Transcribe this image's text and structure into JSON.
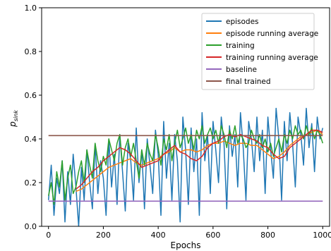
{
  "chart_data": {
    "type": "line",
    "title": "",
    "xlabel": "Epochs",
    "ylabel_main": "p",
    "ylabel_sub": "sink",
    "xlim": [
      -25,
      1025
    ],
    "ylim": [
      0,
      1
    ],
    "xticks": [
      0,
      200,
      400,
      600,
      800,
      1000
    ],
    "yticks": [
      0.0,
      0.2,
      0.4,
      0.6,
      0.8,
      1.0
    ],
    "xtick_labels": [
      "0",
      "200",
      "400",
      "600",
      "800",
      "1000"
    ],
    "ytick_labels": [
      "0.0",
      "0.2",
      "0.4",
      "0.6",
      "0.8",
      "1.0"
    ],
    "grid": false,
    "legend_position": "top-right",
    "series": [
      {
        "name": "episodes",
        "color": "#1f77b4",
        "x": [
          0,
          10,
          20,
          30,
          40,
          50,
          60,
          70,
          80,
          90,
          100,
          110,
          120,
          130,
          140,
          150,
          160,
          170,
          180,
          190,
          200,
          210,
          220,
          230,
          240,
          250,
          260,
          270,
          280,
          290,
          300,
          310,
          320,
          330,
          340,
          350,
          360,
          370,
          380,
          390,
          400,
          410,
          420,
          430,
          440,
          450,
          460,
          470,
          480,
          490,
          500,
          510,
          520,
          530,
          540,
          550,
          560,
          570,
          580,
          590,
          600,
          610,
          620,
          630,
          640,
          650,
          660,
          670,
          680,
          690,
          700,
          710,
          720,
          730,
          740,
          750,
          760,
          770,
          780,
          790,
          800,
          810,
          820,
          830,
          840,
          850,
          860,
          870,
          880,
          890,
          900,
          910,
          920,
          930,
          940,
          950,
          960,
          970,
          980,
          990,
          1000
        ],
        "values": [
          0.12,
          0.28,
          0.05,
          0.22,
          0.15,
          0.3,
          0.02,
          0.25,
          0.1,
          0.33,
          0.18,
          0.0,
          0.27,
          0.12,
          0.35,
          0.2,
          0.08,
          0.38,
          0.15,
          0.3,
          0.22,
          0.05,
          0.4,
          0.18,
          0.33,
          0.1,
          0.42,
          0.25,
          0.07,
          0.38,
          0.3,
          0.12,
          0.45,
          0.2,
          0.35,
          0.08,
          0.4,
          0.28,
          0.15,
          0.44,
          0.33,
          0.05,
          0.48,
          0.22,
          0.38,
          0.12,
          0.42,
          0.3,
          0.02,
          0.5,
          0.35,
          0.1,
          0.45,
          0.25,
          0.4,
          0.05,
          0.52,
          0.3,
          0.42,
          0.15,
          0.48,
          0.35,
          0.2,
          0.5,
          0.38,
          0.08,
          0.46,
          0.32,
          0.42,
          0.18,
          0.52,
          0.36,
          0.12,
          0.48,
          0.4,
          0.25,
          0.5,
          0.3,
          0.44,
          0.15,
          0.5,
          0.35,
          0.22,
          0.54,
          0.4,
          0.12,
          0.48,
          0.3,
          0.52,
          0.38,
          0.18,
          0.5,
          0.42,
          0.28,
          0.54,
          0.36,
          0.47,
          0.25,
          0.5,
          0.4,
          0.45
        ]
      },
      {
        "name": "episode running average",
        "color": "#ff7f0e",
        "x": [
          100,
          120,
          140,
          160,
          180,
          200,
          220,
          240,
          260,
          280,
          300,
          320,
          340,
          360,
          380,
          400,
          420,
          440,
          460,
          480,
          500,
          520,
          540,
          560,
          580,
          600,
          620,
          640,
          660,
          680,
          700,
          720,
          740,
          760,
          780,
          800,
          820,
          840,
          860,
          880,
          900,
          920,
          940,
          960,
          980,
          1000
        ],
        "values": [
          0.16,
          0.17,
          0.19,
          0.21,
          0.23,
          0.25,
          0.27,
          0.28,
          0.29,
          0.3,
          0.31,
          0.29,
          0.28,
          0.29,
          0.3,
          0.31,
          0.33,
          0.34,
          0.36,
          0.34,
          0.35,
          0.35,
          0.34,
          0.35,
          0.37,
          0.38,
          0.38,
          0.39,
          0.38,
          0.37,
          0.38,
          0.38,
          0.37,
          0.37,
          0.35,
          0.33,
          0.31,
          0.32,
          0.34,
          0.37,
          0.39,
          0.41,
          0.42,
          0.43,
          0.44,
          0.42
        ]
      },
      {
        "name": "training",
        "color": "#2ca02c",
        "x": [
          0,
          10,
          20,
          30,
          40,
          50,
          60,
          70,
          80,
          90,
          100,
          110,
          120,
          130,
          140,
          150,
          160,
          170,
          180,
          190,
          200,
          210,
          220,
          230,
          240,
          250,
          260,
          270,
          280,
          290,
          300,
          310,
          320,
          330,
          340,
          350,
          360,
          370,
          380,
          390,
          400,
          410,
          420,
          430,
          440,
          450,
          460,
          470,
          480,
          490,
          500,
          510,
          520,
          530,
          540,
          550,
          560,
          570,
          580,
          590,
          600,
          610,
          620,
          630,
          640,
          650,
          660,
          670,
          680,
          690,
          700,
          710,
          720,
          730,
          740,
          750,
          760,
          770,
          780,
          790,
          800,
          810,
          820,
          830,
          840,
          850,
          860,
          870,
          880,
          890,
          900,
          910,
          920,
          930,
          940,
          950,
          960,
          970,
          980,
          990,
          1000
        ],
        "values": [
          0.14,
          0.2,
          0.1,
          0.25,
          0.18,
          0.3,
          0.12,
          0.22,
          0.28,
          0.15,
          0.18,
          0.25,
          0.3,
          0.2,
          0.35,
          0.28,
          0.22,
          0.38,
          0.3,
          0.25,
          0.32,
          0.28,
          0.4,
          0.35,
          0.3,
          0.38,
          0.42,
          0.28,
          0.36,
          0.4,
          0.32,
          0.38,
          0.3,
          0.22,
          0.35,
          0.28,
          0.38,
          0.33,
          0.3,
          0.42,
          0.36,
          0.28,
          0.4,
          0.35,
          0.42,
          0.3,
          0.38,
          0.44,
          0.36,
          0.4,
          0.45,
          0.38,
          0.42,
          0.35,
          0.44,
          0.4,
          0.46,
          0.38,
          0.42,
          0.45,
          0.4,
          0.44,
          0.38,
          0.46,
          0.42,
          0.36,
          0.44,
          0.4,
          0.46,
          0.38,
          0.42,
          0.4,
          0.36,
          0.38,
          0.44,
          0.4,
          0.38,
          0.42,
          0.36,
          0.4,
          0.34,
          0.38,
          0.32,
          0.36,
          0.4,
          0.34,
          0.42,
          0.38,
          0.44,
          0.4,
          0.46,
          0.42,
          0.44,
          0.4,
          0.46,
          0.42,
          0.45,
          0.4,
          0.44,
          0.42,
          0.38
        ]
      },
      {
        "name": "training running average",
        "color": "#d62728",
        "x": [
          100,
          120,
          140,
          160,
          180,
          200,
          220,
          240,
          260,
          280,
          300,
          320,
          340,
          360,
          380,
          400,
          420,
          440,
          460,
          480,
          500,
          520,
          540,
          560,
          580,
          600,
          620,
          640,
          660,
          680,
          700,
          720,
          740,
          760,
          780,
          800,
          820,
          840,
          860,
          880,
          900,
          920,
          940,
          960,
          980,
          1000
        ],
        "values": [
          0.17,
          0.19,
          0.22,
          0.25,
          0.27,
          0.3,
          0.32,
          0.34,
          0.36,
          0.35,
          0.33,
          0.3,
          0.27,
          0.28,
          0.29,
          0.3,
          0.33,
          0.35,
          0.37,
          0.34,
          0.33,
          0.31,
          0.3,
          0.32,
          0.36,
          0.38,
          0.39,
          0.41,
          0.42,
          0.41,
          0.42,
          0.41,
          0.4,
          0.39,
          0.37,
          0.36,
          0.33,
          0.31,
          0.32,
          0.36,
          0.38,
          0.4,
          0.42,
          0.44,
          0.44,
          0.43
        ]
      },
      {
        "name": "baseline",
        "color": "#9467bd",
        "x": [
          0,
          1000
        ],
        "values": [
          0.115,
          0.115
        ]
      },
      {
        "name": "final trained",
        "color": "#8c564b",
        "x": [
          0,
          1000
        ],
        "values": [
          0.415,
          0.415
        ]
      }
    ]
  }
}
